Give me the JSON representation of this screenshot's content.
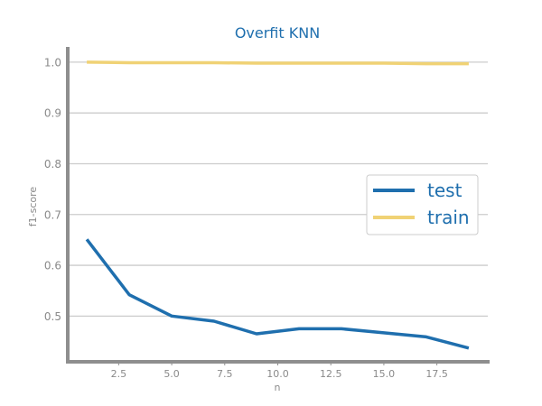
{
  "chart_data": {
    "type": "line",
    "title": "Overfit KNN",
    "xlabel": "n",
    "ylabel": "f1-score",
    "xlim": [
      0.1,
      19.9
    ],
    "ylim": [
      0.41,
      1.03
    ],
    "x_ticks": [
      2.5,
      5.0,
      7.5,
      10.0,
      12.5,
      15.0,
      17.5
    ],
    "x_tick_labels": [
      "2.5",
      "5.0",
      "7.5",
      "10.0",
      "12.5",
      "15.0",
      "17.5"
    ],
    "y_ticks": [
      0.5,
      0.6,
      0.7,
      0.8,
      0.9,
      1.0
    ],
    "y_tick_labels": [
      "0.5",
      "0.6",
      "0.7",
      "0.8",
      "0.9",
      "1.0"
    ],
    "grid": "horizontal",
    "legend_position": "center-right",
    "series": [
      {
        "name": "test",
        "color": "#1f6fae",
        "x": [
          1,
          3,
          5,
          7,
          9,
          11,
          13,
          15,
          17,
          19
        ],
        "y": [
          0.651,
          0.542,
          0.5,
          0.49,
          0.465,
          0.475,
          0.475,
          0.467,
          0.459,
          0.437
        ]
      },
      {
        "name": "train",
        "color": "#f0d275",
        "x": [
          1,
          3,
          5,
          7,
          9,
          11,
          13,
          15,
          17,
          19
        ],
        "y": [
          1.0,
          0.999,
          0.999,
          0.999,
          0.998,
          0.998,
          0.998,
          0.998,
          0.997,
          0.997
        ]
      }
    ],
    "colors": {
      "title": "#1f6fae",
      "grid": "#cccccc",
      "axis": "#8e8e8e"
    }
  }
}
